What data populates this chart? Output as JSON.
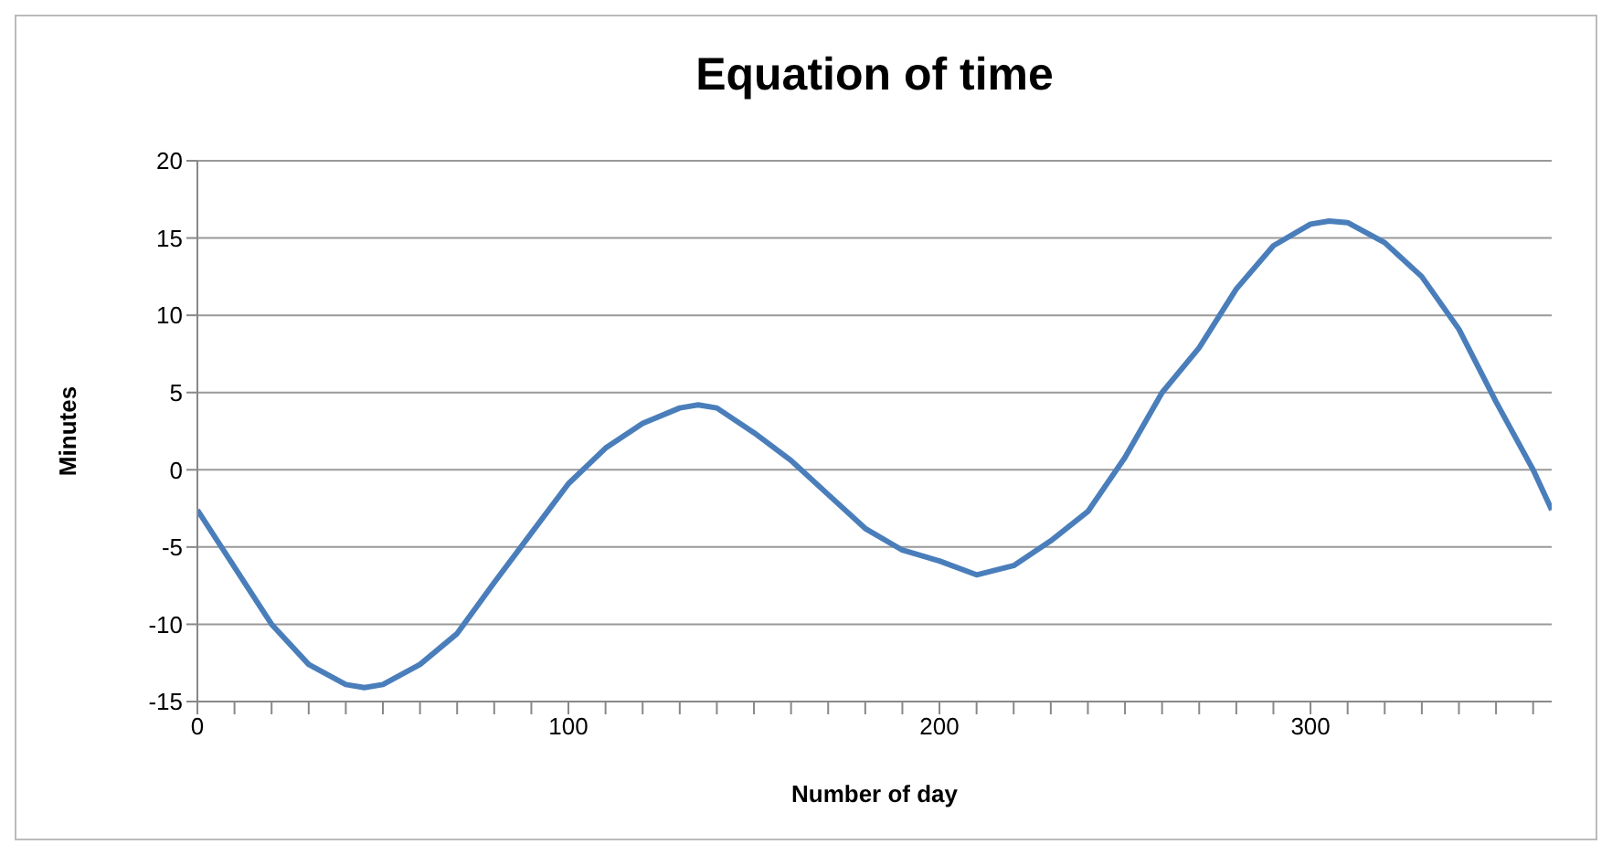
{
  "chart_data": {
    "type": "line",
    "title": "Equation of time",
    "xlabel": "Number of day",
    "ylabel": "Minutes",
    "x": [
      0,
      10,
      20,
      30,
      40,
      45,
      50,
      60,
      70,
      80,
      90,
      100,
      110,
      120,
      130,
      135,
      140,
      150,
      160,
      170,
      180,
      190,
      200,
      210,
      220,
      230,
      240,
      250,
      260,
      270,
      280,
      290,
      300,
      305,
      310,
      320,
      330,
      340,
      350,
      360,
      365
    ],
    "series": [
      {
        "color": "#4a7ebb",
        "values": [
          -2.6,
          -6.3,
          -10,
          -12.6,
          -13.9,
          -14.1,
          -13.9,
          -12.6,
          -10.6,
          -7.3,
          -4.1,
          -0.9,
          1.4,
          3,
          4,
          4.2,
          4,
          2.4,
          0.6,
          -1.6,
          -3.8,
          -5.2,
          -5.9,
          -6.8,
          -6.2,
          -4.6,
          -2.7,
          0.8,
          5,
          7.9,
          11.7,
          14.5,
          15.9,
          16.1,
          16,
          14.7,
          12.5,
          9.1,
          4.4,
          0,
          -2.6
        ]
      }
    ],
    "xlim": [
      0,
      365
    ],
    "xticks": [
      0,
      {
        "value": 10,
        "label": null
      },
      {
        "value": 20,
        "label": null
      },
      {
        "value": 30,
        "label": null
      },
      {
        "value": 40,
        "label": null
      },
      {
        "value": 50,
        "label": null
      },
      {
        "value": 60,
        "label": null
      },
      {
        "value": 70,
        "label": null
      },
      {
        "value": 80,
        "label": null
      },
      {
        "value": 90,
        "label": null
      },
      100,
      {
        "value": 110,
        "label": null
      },
      {
        "value": 120,
        "label": null
      },
      {
        "value": 130,
        "label": null
      },
      {
        "value": 140,
        "label": null
      },
      {
        "value": 150,
        "label": null
      },
      {
        "value": 160,
        "label": null
      },
      {
        "value": 170,
        "label": null
      },
      {
        "value": 180,
        "label": null
      },
      {
        "value": 190,
        "label": null
      },
      200,
      {
        "value": 210,
        "label": null
      },
      {
        "value": 220,
        "label": null
      },
      {
        "value": 230,
        "label": null
      },
      {
        "value": 240,
        "label": null
      },
      {
        "value": 250,
        "label": null
      },
      {
        "value": 260,
        "label": null
      },
      {
        "value": 270,
        "label": null
      },
      {
        "value": 280,
        "label": null
      },
      {
        "value": 290,
        "label": null
      },
      300,
      {
        "value": 310,
        "label": null
      },
      {
        "value": 320,
        "label": null
      },
      {
        "value": 330,
        "label": null
      },
      {
        "value": 340,
        "label": null
      },
      {
        "value": 350,
        "label": null
      },
      {
        "value": 360,
        "label": null
      }
    ],
    "ylim": [
      -15,
      20
    ],
    "yticks": [
      -15,
      -10,
      -5,
      0,
      5,
      10,
      15,
      20
    ],
    "grid": "y",
    "legend": false,
    "marker": "none",
    "line_style": "solid"
  }
}
